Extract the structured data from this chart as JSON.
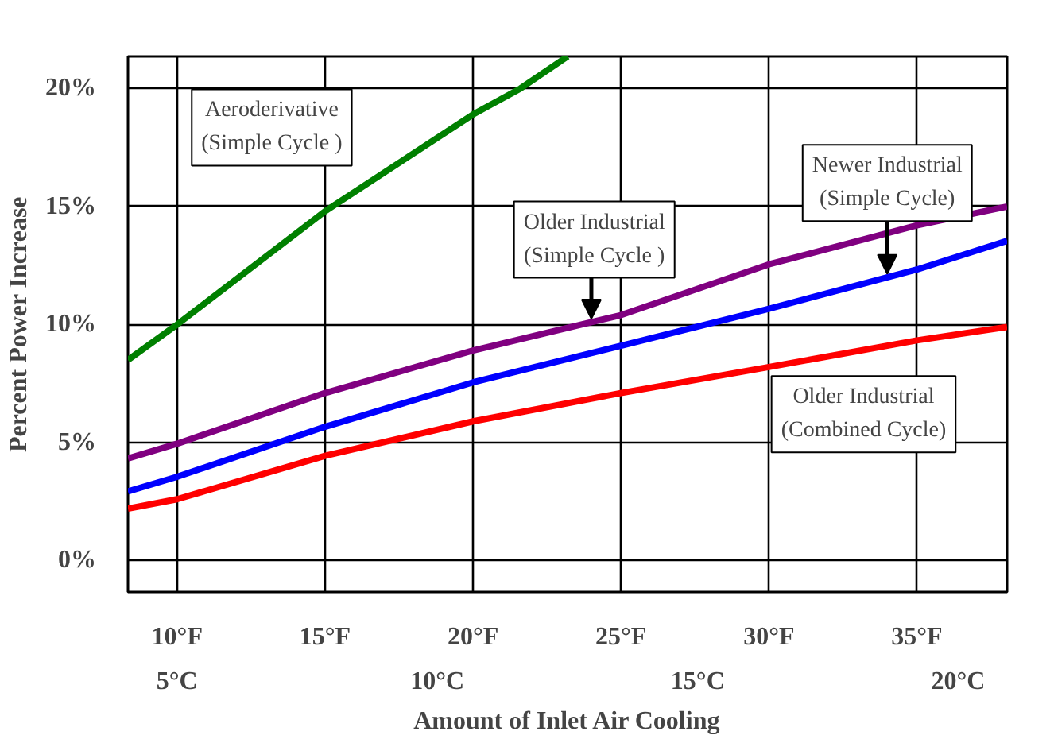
{
  "chart_data": {
    "type": "line",
    "xlabel": "Amount of Inlet Air Cooling",
    "ylabel": "Percent Power Increase",
    "xlim": [
      8.34,
      38.05
    ],
    "ylim": [
      -1.33,
      21.36
    ],
    "xticks": [
      {
        "value": 10,
        "label": "10°F"
      },
      {
        "value": 15,
        "label": "15°F"
      },
      {
        "value": 20,
        "label": "20°F"
      },
      {
        "value": 25,
        "label": "25°F"
      },
      {
        "value": 30,
        "label": "30°F"
      },
      {
        "value": 35,
        "label": "35°F"
      }
    ],
    "x2lim": [
      4.06,
      20.94
    ],
    "x2ticks": [
      {
        "value": 5,
        "label": "5°C"
      },
      {
        "value": 10,
        "label": "10°C"
      },
      {
        "value": 15,
        "label": "15°C"
      },
      {
        "value": 20,
        "label": "20°C"
      }
    ],
    "yticks": [
      {
        "value": 0,
        "label": "0%"
      },
      {
        "value": 5,
        "label": "5%"
      },
      {
        "value": 10,
        "label": "10%"
      },
      {
        "value": 15,
        "label": "15%"
      },
      {
        "value": 20,
        "label": "20%"
      }
    ],
    "grid": true,
    "marker": "none",
    "line_style": "solid",
    "series": [
      {
        "name": "Aeroderivative\n(Simple Cycle )",
        "color": "#008000",
        "x": [
          8.34,
          10,
          15,
          20,
          21.6,
          23.2
        ],
        "values": [
          8.5,
          10.0,
          14.8,
          18.9,
          20.0,
          21.36
        ]
      },
      {
        "name": "Older Industrial\n(Simple Cycle )",
        "color": "#800080",
        "x": [
          8.34,
          10,
          15,
          20,
          25,
          30,
          35,
          38.05
        ],
        "values": [
          4.33,
          4.95,
          7.1,
          8.9,
          10.4,
          12.55,
          14.2,
          15.0
        ]
      },
      {
        "name": "Newer Industrial\n(Simple Cycle)",
        "color": "#0000ff",
        "x": [
          8.34,
          10,
          15,
          20,
          25,
          30,
          35,
          38.05
        ],
        "values": [
          2.93,
          3.55,
          5.67,
          7.55,
          9.1,
          10.67,
          12.33,
          13.55
        ]
      },
      {
        "name": "Older Industrial\n(Combined Cycle)",
        "color": "#ff0000",
        "x": [
          8.34,
          10,
          15,
          20,
          25,
          30,
          35,
          38.05
        ],
        "values": [
          2.2,
          2.6,
          4.44,
          5.9,
          7.1,
          8.2,
          9.33,
          9.9
        ]
      }
    ]
  }
}
